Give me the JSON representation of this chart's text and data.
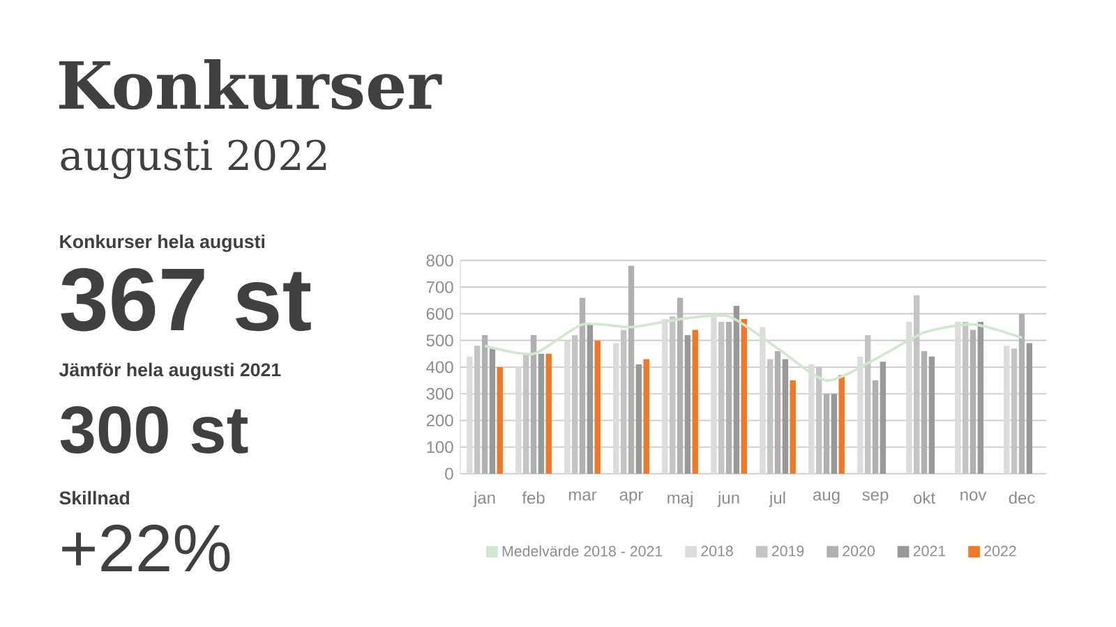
{
  "chart_data": {
    "type": "bar",
    "title": "Konkurser",
    "subtitle": "augusti 2022",
    "annotations": [
      "Konkurser hela augusti",
      "367 st",
      "Jämför hela augusti 2021",
      "300 st",
      "Skillnad",
      "+22%"
    ],
    "categories": [
      "jan",
      "feb",
      "mar",
      "apr",
      "maj",
      "jun",
      "jul",
      "aug",
      "sep",
      "okt",
      "nov",
      "dec"
    ],
    "series": [
      {
        "name": "Medelvärde 2018 - 2021",
        "type": "line",
        "color": "#cfe8cf",
        "values": [
          480,
          450,
          560,
          550,
          580,
          590,
          470,
          350,
          430,
          530,
          560,
          510
        ]
      },
      {
        "name": "2018",
        "color": "#dcdcdc",
        "values": [
          440,
          400,
          500,
          490,
          580,
          600,
          550,
          410,
          440,
          570,
          570,
          480
        ]
      },
      {
        "name": "2019",
        "color": "#c4c4c4",
        "values": [
          480,
          450,
          520,
          540,
          590,
          570,
          430,
          400,
          520,
          670,
          570,
          470
        ]
      },
      {
        "name": "2020",
        "color": "#b0b0b0",
        "values": [
          520,
          520,
          660,
          780,
          660,
          570,
          460,
          300,
          350,
          460,
          540,
          600
        ]
      },
      {
        "name": "2021",
        "color": "#999999",
        "values": [
          470,
          450,
          560,
          410,
          520,
          630,
          430,
          300,
          420,
          440,
          570,
          490
        ]
      },
      {
        "name": "2022",
        "color": "#f07828",
        "values": [
          400,
          450,
          500,
          430,
          540,
          580,
          350,
          370,
          null,
          null,
          null,
          null
        ]
      }
    ],
    "ylim": [
      0,
      800
    ],
    "yticks": [
      0,
      100,
      200,
      300,
      400,
      500,
      600,
      700,
      800
    ],
    "grid": "y",
    "legend": "bottom",
    "marker": "none",
    "line_style": "solid"
  }
}
